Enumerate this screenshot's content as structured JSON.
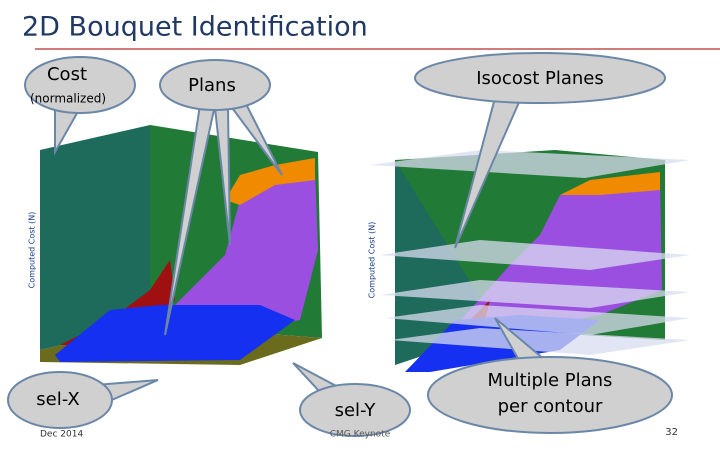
{
  "header": {
    "title": "2D Bouquet Identification"
  },
  "callouts": {
    "cost": {
      "line1": "Cost",
      "line2": "(normalized)"
    },
    "plans": {
      "label": "Plans"
    },
    "isocost": {
      "label": "Isocost Planes"
    },
    "sel_x": {
      "label": "sel-X"
    },
    "sel_y": {
      "label": "sel-Y"
    },
    "multiple": {
      "line1": "Multiple Plans",
      "line2": "per contour"
    }
  },
  "plots": {
    "left": {
      "y_axis_label": "Computed Cost (N)"
    },
    "right": {
      "y_axis_label": "Computed Cost (N)"
    }
  },
  "footer": {
    "date": "Dec 2014",
    "event": "CMG Keynote",
    "page": "32"
  }
}
